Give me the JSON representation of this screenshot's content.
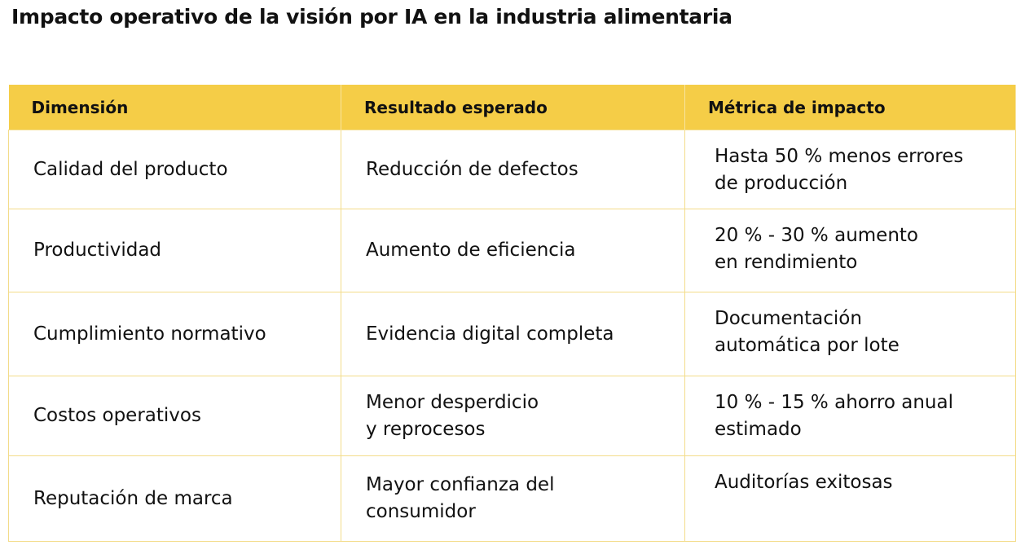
{
  "header": {
    "title": "Impacto operativo de la visión por IA en la industria alimentaria"
  },
  "table": {
    "columns": [
      "Dimensión",
      "Resultado esperado",
      "Métrica de impacto"
    ],
    "rows": [
      [
        "Calidad del producto",
        "Reducción de defectos",
        "Hasta 50 % menos errores\nde producción"
      ],
      [
        "Productividad",
        "Aumento de eficiencia",
        "20 % - 30 % aumento\nen rendimiento"
      ],
      [
        "Cumplimiento normativo",
        "Evidencia digital completa",
        "Documentación\nautomática por lote"
      ],
      [
        "Costos operativos",
        "Menor desperdicio\ny reprocesos",
        "10 % - 15  % ahorro anual\nestimado"
      ],
      [
        "Reputación de marca",
        "Mayor confianza del\nconsumidor",
        "Auditorías exitosas"
      ]
    ]
  }
}
